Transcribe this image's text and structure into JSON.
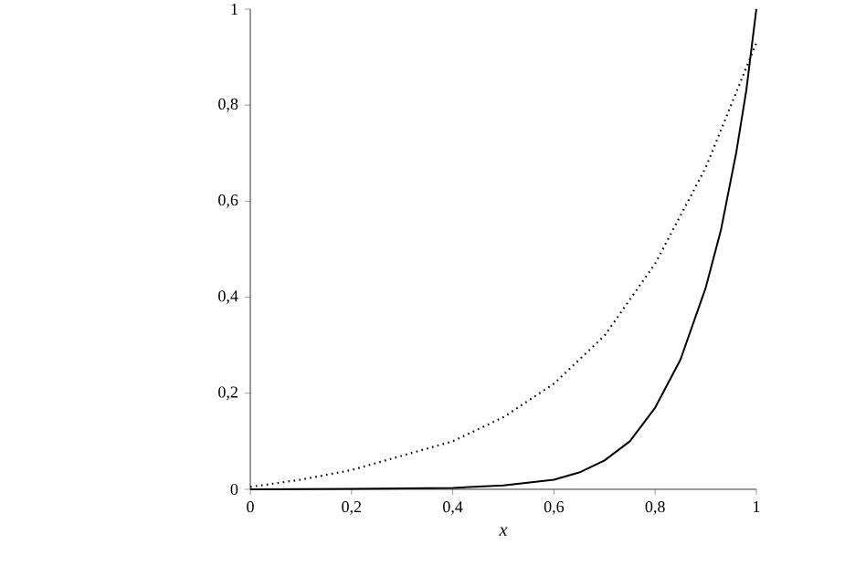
{
  "chart_data": {
    "type": "line",
    "xlabel": "*x*",
    "xlim": [
      0,
      1
    ],
    "ylim": [
      0,
      1
    ],
    "xticks": [
      0,
      {
        "value": 0.2,
        "label": "0,2"
      },
      {
        "value": 0.4,
        "label": "0,4"
      },
      {
        "value": 0.6,
        "label": "0,6"
      },
      {
        "value": 0.8,
        "label": "0,8"
      },
      1
    ],
    "yticks": [
      0,
      {
        "value": 0.2,
        "label": "0,2"
      },
      {
        "value": 0.4,
        "label": "0,4"
      },
      {
        "value": 0.6,
        "label": "0,6"
      },
      {
        "value": 0.8,
        "label": "0,8"
      },
      1
    ],
    "grid": false,
    "series": [
      {
        "color": "#000000",
        "line_style": "dotted",
        "x": [
          0,
          0.1,
          0.2,
          0.3,
          0.4,
          0.5,
          0.6,
          0.7,
          0.8,
          0.9,
          1.0
        ],
        "values": [
          0.005,
          0.02,
          0.04,
          0.07,
          0.1,
          0.15,
          0.22,
          0.32,
          0.47,
          0.67,
          0.93
        ]
      },
      {
        "color": "#000000",
        "line_style": "solid",
        "x": [
          0,
          0.2,
          0.4,
          0.5,
          0.6,
          0.65,
          0.7,
          0.75,
          0.8,
          0.85,
          0.9,
          0.93,
          0.96,
          0.98,
          1.0
        ],
        "values": [
          0,
          0.001,
          0.003,
          0.008,
          0.02,
          0.035,
          0.06,
          0.1,
          0.17,
          0.27,
          0.42,
          0.54,
          0.7,
          0.83,
          1.0
        ]
      }
    ]
  }
}
